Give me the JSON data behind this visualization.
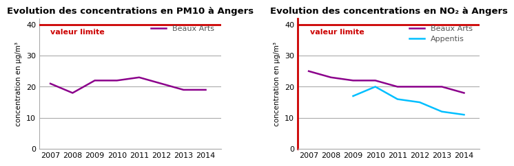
{
  "pm10": {
    "title": "Evolution des concentrations en PM10 à Angers",
    "years": [
      2007,
      2008,
      2009,
      2010,
      2011,
      2012,
      2013,
      2014
    ],
    "beaux_arts": [
      21,
      18,
      22,
      22,
      23,
      21,
      19,
      19
    ],
    "beaux_arts_color": "#8B008B",
    "limit_value": 40,
    "limit_color": "#CC0000",
    "ylim": [
      0,
      42
    ],
    "yticks": [
      0,
      10,
      20,
      30,
      40
    ],
    "ylabel": "concentration en µg/m³",
    "red_left_spine": false
  },
  "no2": {
    "title": "Evolution des concentrations en NO₂ à Angers",
    "years_ba": [
      2007,
      2008,
      2009,
      2010,
      2011,
      2012,
      2013,
      2014
    ],
    "beaux_arts": [
      25,
      23,
      22,
      22,
      20,
      20,
      20,
      18
    ],
    "years_ap": [
      2009,
      2010,
      2011,
      2012,
      2013,
      2014
    ],
    "appentis": [
      17,
      20,
      16,
      15,
      12,
      11
    ],
    "beaux_arts_color": "#8B008B",
    "appentis_color": "#00BFFF",
    "limit_value": 40,
    "limit_color": "#CC0000",
    "ylim": [
      0,
      42
    ],
    "yticks": [
      0,
      10,
      20,
      30,
      40
    ],
    "ylabel": "concentration en µg/m³",
    "red_left_spine": true
  },
  "background_color": "#ffffff",
  "grid_color": "#aaaaaa",
  "line_width": 1.8,
  "font_size_title": 9.5,
  "font_size_label": 7.5,
  "font_size_legend": 8,
  "font_size_tick": 8
}
